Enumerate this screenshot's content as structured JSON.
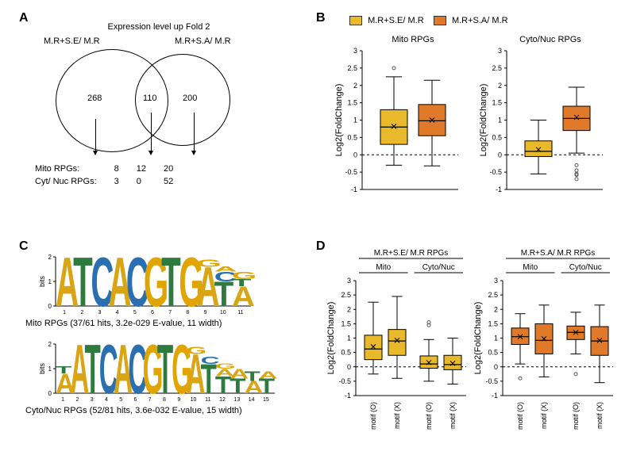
{
  "panels": {
    "A": "A",
    "B": "B",
    "C": "C",
    "D": "D"
  },
  "colors": {
    "yellow": "#e8b92a",
    "orange": "#e07a2a",
    "axis": "#000000",
    "grid_dash": "#000000",
    "outlier": "#555555",
    "bg": "#ffffff"
  },
  "A": {
    "title": "Expression level up Fold 2",
    "left_label": "M.R+S.E/ M.R",
    "right_label": "M.R+S.A/ M.R",
    "left_count": 268,
    "intersection_count": 110,
    "right_count": 200,
    "rpg_rows": {
      "mito_label": "Mito RPGs:",
      "cyt_label": "Cyt/ Nuc RPGs:",
      "mito": [
        8,
        12,
        20
      ],
      "cyt": [
        3,
        0,
        52
      ]
    }
  },
  "B": {
    "legend": {
      "yellow_label": "M.R+S.E/ M.R",
      "orange_label": "M.R+S.A/ M.R"
    },
    "left": {
      "title": "Mito RPGs",
      "y_label": "Log2(FoldChange)",
      "ylim": [
        -1,
        3
      ],
      "ytick_step": 0.5,
      "boxes": [
        {
          "color_key": "yellow",
          "q1": 0.3,
          "median": 0.8,
          "q3": 1.3,
          "whisker_low": -0.3,
          "whisker_high": 2.25,
          "mean": 0.82,
          "outliers": [
            2.5
          ]
        },
        {
          "color_key": "orange",
          "q1": 0.55,
          "median": 0.98,
          "q3": 1.45,
          "whisker_low": -0.32,
          "whisker_high": 2.15,
          "mean": 1.0,
          "outliers": []
        }
      ]
    },
    "right": {
      "title": "Cyto/Nuc RPGs",
      "y_label": "Log2(FoldChange)",
      "ylim": [
        -1,
        3
      ],
      "ytick_step": 0.5,
      "boxes": [
        {
          "color_key": "yellow",
          "q1": -0.05,
          "median": 0.1,
          "q3": 0.4,
          "whisker_low": -0.55,
          "whisker_high": 1.0,
          "mean": 0.15,
          "outliers": []
        },
        {
          "color_key": "orange",
          "q1": 0.7,
          "median": 1.05,
          "q3": 1.4,
          "whisker_low": 0.05,
          "whisker_high": 1.95,
          "mean": 1.08,
          "outliers": [
            -0.3,
            -0.45,
            -0.55,
            -0.58,
            -0.7
          ]
        }
      ]
    }
  },
  "C": {
    "yaxis_label": "bits",
    "top_caption": "Mito RPGs (37/61 hits, 3.2e-029 E-value, 11 width)",
    "bot_caption": "Cyto/Nuc RPGs (52/81 hits, 3.6e-032 E-value, 15 width)",
    "letter_colors": {
      "A": "#d9a514",
      "C": "#2a6fb0",
      "G": "#e0a500",
      "T": "#2f7a3f"
    },
    "motif_top": [
      [
        [
          "A",
          2.0
        ]
      ],
      [
        [
          "T",
          2.0
        ]
      ],
      [
        [
          "C",
          2.0
        ]
      ],
      [
        [
          "A",
          2.0
        ]
      ],
      [
        [
          "C",
          2.0
        ]
      ],
      [
        [
          "G",
          2.0
        ]
      ],
      [
        [
          "T",
          2.0
        ]
      ],
      [
        [
          "G",
          2.0
        ]
      ],
      [
        [
          "A",
          1.6
        ],
        [
          "G",
          0.3
        ]
      ],
      [
        [
          "T",
          1.0
        ],
        [
          "C",
          0.4
        ],
        [
          "A",
          0.2
        ]
      ],
      [
        [
          "A",
          0.8
        ],
        [
          "T",
          0.3
        ],
        [
          "G",
          0.3
        ]
      ]
    ],
    "motif_bot": [
      [
        [
          "A",
          0.8
        ],
        [
          "T",
          0.3
        ]
      ],
      [
        [
          "A",
          2.0
        ]
      ],
      [
        [
          "T",
          2.0
        ]
      ],
      [
        [
          "C",
          2.0
        ]
      ],
      [
        [
          "A",
          2.0
        ]
      ],
      [
        [
          "C",
          2.0
        ]
      ],
      [
        [
          "G",
          2.0
        ]
      ],
      [
        [
          "T",
          2.0
        ]
      ],
      [
        [
          "G",
          2.0
        ]
      ],
      [
        [
          "A",
          1.6
        ],
        [
          "G",
          0.3
        ]
      ],
      [
        [
          "T",
          1.2
        ],
        [
          "C",
          0.3
        ]
      ],
      [
        [
          "T",
          0.7
        ],
        [
          "A",
          0.3
        ],
        [
          "G",
          0.2
        ]
      ],
      [
        [
          "T",
          0.6
        ],
        [
          "A",
          0.4
        ]
      ],
      [
        [
          "A",
          0.5
        ],
        [
          "T",
          0.4
        ]
      ],
      [
        [
          "T",
          0.6
        ],
        [
          "A",
          0.3
        ]
      ]
    ]
  },
  "D": {
    "y_label": "Log2(FoldChange)",
    "ylim": [
      -1,
      3
    ],
    "ytick_step": 0.5,
    "tick_labels": [
      "motif (O)",
      "motif (X)",
      "motif (O)",
      "motif (X)"
    ],
    "left": {
      "header_top": "M.R+S.E/ M.R RPGs",
      "header_groups": [
        "Mito",
        "Cyto/Nuc"
      ],
      "color_key": "yellow",
      "boxes": [
        {
          "q1": 0.25,
          "median": 0.62,
          "q3": 1.1,
          "whisker_low": -0.25,
          "whisker_high": 2.25,
          "mean": 0.7,
          "outliers": []
        },
        {
          "q1": 0.4,
          "median": 0.9,
          "q3": 1.3,
          "whisker_low": -0.4,
          "whisker_high": 2.45,
          "mean": 0.92,
          "outliers": []
        },
        {
          "q1": -0.05,
          "median": 0.1,
          "q3": 0.38,
          "whisker_low": -0.5,
          "whisker_high": 0.95,
          "mean": 0.15,
          "outliers": [
            1.45,
            1.55
          ]
        },
        {
          "q1": -0.1,
          "median": 0.08,
          "q3": 0.4,
          "whisker_low": -0.6,
          "whisker_high": 1.0,
          "mean": 0.12,
          "outliers": []
        }
      ]
    },
    "right": {
      "header_top": "M.R+S.A/ M.R RPGs",
      "header_groups": [
        "Mito",
        "Cyto/Nuc"
      ],
      "color_key": "orange",
      "boxes": [
        {
          "q1": 0.78,
          "median": 1.05,
          "q3": 1.35,
          "whisker_low": 0.1,
          "whisker_high": 1.85,
          "mean": 1.05,
          "outliers": [
            -0.4
          ]
        },
        {
          "q1": 0.45,
          "median": 0.92,
          "q3": 1.5,
          "whisker_low": -0.35,
          "whisker_high": 2.15,
          "mean": 0.98,
          "outliers": []
        },
        {
          "q1": 0.95,
          "median": 1.2,
          "q3": 1.42,
          "whisker_low": 0.45,
          "whisker_high": 1.9,
          "mean": 1.2,
          "outliers": [
            -0.25
          ]
        },
        {
          "q1": 0.4,
          "median": 0.9,
          "q3": 1.4,
          "whisker_low": -0.55,
          "whisker_high": 2.15,
          "mean": 0.92,
          "outliers": []
        }
      ]
    }
  }
}
